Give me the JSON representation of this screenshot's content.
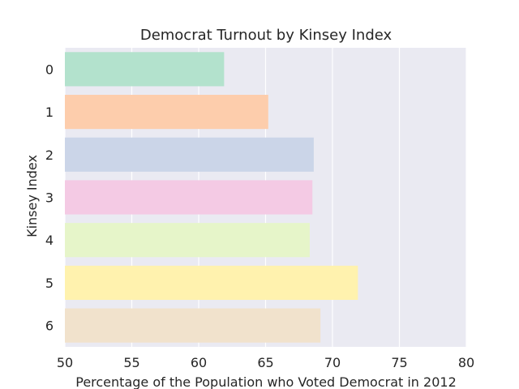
{
  "chart_data": {
    "type": "bar",
    "orientation": "horizontal",
    "title": "Democrat Turnout by Kinsey Index",
    "xlabel": "Percentage of the Population who Voted Democrat in 2012",
    "ylabel": "Kinsey Index",
    "xlim": [
      50,
      80
    ],
    "xticks": [
      50,
      55,
      60,
      65,
      70,
      75,
      80
    ],
    "categories": [
      "0",
      "1",
      "2",
      "3",
      "4",
      "5",
      "6"
    ],
    "values": [
      61.9,
      65.2,
      68.6,
      68.5,
      68.3,
      71.9,
      69.1
    ],
    "colors": [
      "#b3e2cd",
      "#fdcdac",
      "#cbd5e8",
      "#f4cae4",
      "#e6f5c9",
      "#fff2ae",
      "#f1e2cc"
    ],
    "background_color": "#eaeaf2",
    "grid": true,
    "grid_axis": "x",
    "grid_color": "#ffffff"
  }
}
